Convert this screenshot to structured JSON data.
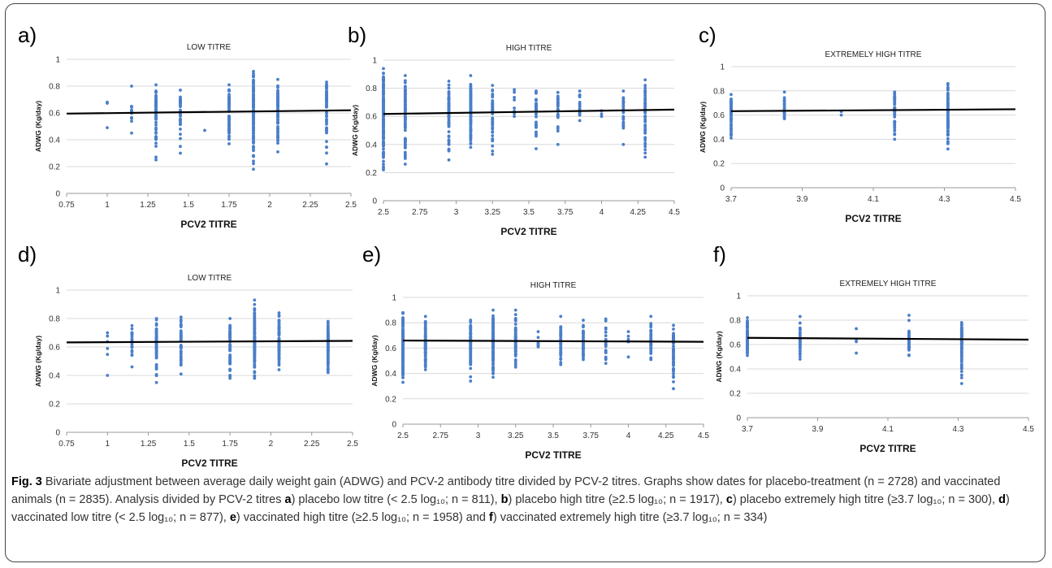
{
  "figure": {
    "caption_label": "Fig. 3",
    "caption_text": " Bivariate adjustment between average daily weight gain (ADWG) and PCV-2 antibody titre divided by PCV-2 titres. Graphs show dates for placebo-treatment (n = 2728) and vaccinated animals (n = 2835). Analysis divided by PCV-2 titres ",
    "caption_parts": [
      {
        "bold": "a",
        "text": ") placebo low titre (< 2.5 log₁₀; n = 811), "
      },
      {
        "bold": "b",
        "text": ") placebo high titre (≥2.5 log₁₀; n = 1917), "
      },
      {
        "bold": "c",
        "text": ") placebo extremely high titre (≥3.7 log₁₀; n = 300), "
      },
      {
        "bold": "d",
        "text": ") vaccinated low titre (< 2.5 log₁₀; n = 877), "
      },
      {
        "bold": "e",
        "text": ") vaccinated high titre (≥2.5 log₁₀; n = 1958) and "
      },
      {
        "bold": "f",
        "text": ") vaccinated extremely high titre (≥3.7 log₁₀; n = 334)"
      }
    ]
  },
  "colors": {
    "points": "#4a7ec9",
    "trend": "#000000",
    "grid": "#d9d9d9"
  },
  "chart_data": [
    {
      "panel": "a)",
      "type": "scatter",
      "title": "LOW TITRE",
      "xlabel": "PCV2 TITRE",
      "ylabel": "ADWG (Kg/day)",
      "xlim": [
        0.75,
        2.5
      ],
      "ylim": [
        0,
        1
      ],
      "xticks": [
        "0.75",
        "1",
        "1.25",
        "1.5",
        "1.75",
        "2",
        "2.25",
        "2.5"
      ],
      "yticks": [
        "0",
        "0.2",
        "0.4",
        "0.6",
        "0.8",
        "1"
      ],
      "trend": [
        [
          0.75,
          0.595
        ],
        [
          2.5,
          0.62
        ]
      ],
      "columns": [
        {
          "x": 1.0,
          "min": 0.49,
          "max": 0.68,
          "n": 3
        },
        {
          "x": 1.15,
          "min": 0.45,
          "max": 0.8,
          "n": 14
        },
        {
          "x": 1.3,
          "min": 0.25,
          "max": 0.81,
          "n": 60
        },
        {
          "x": 1.45,
          "min": 0.3,
          "max": 0.77,
          "n": 40
        },
        {
          "x": 1.6,
          "min": 0.47,
          "max": 0.47,
          "n": 1
        },
        {
          "x": 1.75,
          "min": 0.37,
          "max": 0.81,
          "n": 70
        },
        {
          "x": 1.9,
          "min": 0.18,
          "max": 0.91,
          "n": 120
        },
        {
          "x": 2.05,
          "min": 0.31,
          "max": 0.85,
          "n": 80
        },
        {
          "x": 2.35,
          "min": 0.22,
          "max": 0.83,
          "n": 60
        }
      ]
    },
    {
      "panel": "b)",
      "type": "scatter",
      "title": "HIGH TITRE",
      "xlabel": "PCV2 TITRE",
      "ylabel": "ADWG (Kg/day)",
      "xlim": [
        2.5,
        4.5
      ],
      "ylim": [
        0,
        1
      ],
      "xticks": [
        "2.5",
        "2.75",
        "3",
        "3.25",
        "3.5",
        "3.75",
        "4",
        "4.25",
        "4.5"
      ],
      "yticks": [
        "0",
        "0.2",
        "0.4",
        "0.6",
        "0.8",
        "1"
      ],
      "trend": [
        [
          2.5,
          0.617
        ],
        [
          4.5,
          0.648
        ]
      ],
      "columns": [
        {
          "x": 2.5,
          "min": 0.22,
          "max": 0.94,
          "n": 150
        },
        {
          "x": 2.65,
          "min": 0.26,
          "max": 0.89,
          "n": 100
        },
        {
          "x": 2.95,
          "min": 0.29,
          "max": 0.85,
          "n": 70
        },
        {
          "x": 3.1,
          "min": 0.38,
          "max": 0.89,
          "n": 110
        },
        {
          "x": 3.25,
          "min": 0.33,
          "max": 0.82,
          "n": 60
        },
        {
          "x": 3.4,
          "min": 0.6,
          "max": 0.79,
          "n": 8
        },
        {
          "x": 3.55,
          "min": 0.37,
          "max": 0.78,
          "n": 40
        },
        {
          "x": 3.7,
          "min": 0.4,
          "max": 0.77,
          "n": 40
        },
        {
          "x": 3.85,
          "min": 0.57,
          "max": 0.78,
          "n": 20
        },
        {
          "x": 4.0,
          "min": 0.6,
          "max": 0.64,
          "n": 3
        },
        {
          "x": 4.15,
          "min": 0.4,
          "max": 0.78,
          "n": 30
        },
        {
          "x": 4.3,
          "min": 0.31,
          "max": 0.86,
          "n": 60
        }
      ]
    },
    {
      "panel": "c)",
      "type": "scatter",
      "title": "EXTREMELY HIGH TITRE",
      "xlabel": "PCV2 TITRE",
      "ylabel": "ADWG (Kg/day)",
      "xlim": [
        3.7,
        4.5
      ],
      "ylim": [
        0,
        1
      ],
      "xticks": [
        "3.7",
        "3.9",
        "4.1",
        "4.3",
        "4.5"
      ],
      "yticks": [
        "0",
        "0.2",
        "0.4",
        "0.6",
        "0.8",
        "1"
      ],
      "trend": [
        [
          3.7,
          0.632
        ],
        [
          4.5,
          0.648
        ]
      ],
      "columns": [
        {
          "x": 3.7,
          "min": 0.41,
          "max": 0.77,
          "n": 80
        },
        {
          "x": 3.85,
          "min": 0.57,
          "max": 0.79,
          "n": 30
        },
        {
          "x": 4.01,
          "min": 0.6,
          "max": 0.63,
          "n": 3
        },
        {
          "x": 4.16,
          "min": 0.4,
          "max": 0.79,
          "n": 50
        },
        {
          "x": 4.31,
          "min": 0.32,
          "max": 0.86,
          "n": 90
        }
      ]
    },
    {
      "panel": "d)",
      "type": "scatter",
      "title": "LOW TITRE",
      "xlabel": "PCV2 TITRE",
      "ylabel": "ADWG (Kg/day)",
      "xlim": [
        0.75,
        2.5
      ],
      "ylim": [
        0,
        1
      ],
      "xticks": [
        "0.75",
        "1",
        "1.25",
        "1.5",
        "1.75",
        "2",
        "2.25",
        "2.5"
      ],
      "yticks": [
        "0",
        "0.2",
        "0.4",
        "0.6",
        "0.8",
        "1"
      ],
      "trend": [
        [
          0.75,
          0.632
        ],
        [
          2.5,
          0.643
        ]
      ],
      "columns": [
        {
          "x": 1.0,
          "min": 0.4,
          "max": 0.7,
          "n": 6
        },
        {
          "x": 1.15,
          "min": 0.46,
          "max": 0.75,
          "n": 20
        },
        {
          "x": 1.3,
          "min": 0.35,
          "max": 0.8,
          "n": 70
        },
        {
          "x": 1.45,
          "min": 0.41,
          "max": 0.81,
          "n": 50
        },
        {
          "x": 1.75,
          "min": 0.38,
          "max": 0.8,
          "n": 70
        },
        {
          "x": 1.9,
          "min": 0.38,
          "max": 0.93,
          "n": 130
        },
        {
          "x": 2.05,
          "min": 0.44,
          "max": 0.84,
          "n": 90
        },
        {
          "x": 2.35,
          "min": 0.42,
          "max": 0.78,
          "n": 80
        }
      ]
    },
    {
      "panel": "e)",
      "type": "scatter",
      "title": "HIGH TITRE",
      "xlabel": "PCV2 TITRE",
      "ylabel": "ADWG (Kg/day)",
      "xlim": [
        2.5,
        4.5
      ],
      "ylim": [
        0,
        1
      ],
      "xticks": [
        "2.5",
        "2.75",
        "3",
        "3.25",
        "3.5",
        "3.75",
        "4",
        "4.25",
        "4.5"
      ],
      "yticks": [
        "0",
        "0.2",
        "0.4",
        "0.6",
        "0.8",
        "1"
      ],
      "trend": [
        [
          2.5,
          0.66
        ],
        [
          4.5,
          0.65
        ]
      ],
      "columns": [
        {
          "x": 2.5,
          "min": 0.33,
          "max": 0.88,
          "n": 160
        },
        {
          "x": 2.65,
          "min": 0.43,
          "max": 0.85,
          "n": 100
        },
        {
          "x": 2.95,
          "min": 0.34,
          "max": 0.82,
          "n": 80
        },
        {
          "x": 3.1,
          "min": 0.37,
          "max": 0.9,
          "n": 120
        },
        {
          "x": 3.25,
          "min": 0.45,
          "max": 0.9,
          "n": 70
        },
        {
          "x": 3.4,
          "min": 0.61,
          "max": 0.73,
          "n": 8
        },
        {
          "x": 3.55,
          "min": 0.47,
          "max": 0.85,
          "n": 45
        },
        {
          "x": 3.7,
          "min": 0.51,
          "max": 0.82,
          "n": 45
        },
        {
          "x": 3.85,
          "min": 0.48,
          "max": 0.83,
          "n": 30
        },
        {
          "x": 4.0,
          "min": 0.53,
          "max": 0.73,
          "n": 5
        },
        {
          "x": 4.15,
          "min": 0.51,
          "max": 0.85,
          "n": 40
        },
        {
          "x": 4.3,
          "min": 0.28,
          "max": 0.78,
          "n": 70
        }
      ]
    },
    {
      "panel": "f)",
      "type": "scatter",
      "title": "EXTREMELY HIGH TITRE",
      "xlabel": "PCV2 TITRE",
      "ylabel": "ADWG (Kg/day)",
      "xlim": [
        3.7,
        4.5
      ],
      "ylim": [
        0,
        1
      ],
      "xticks": [
        "3.7",
        "3.9",
        "4.1",
        "4.3",
        "4.5"
      ],
      "yticks": [
        "0",
        "0.2",
        "0.4",
        "0.6",
        "0.8",
        "1"
      ],
      "trend": [
        [
          3.7,
          0.655
        ],
        [
          4.5,
          0.64
        ]
      ],
      "columns": [
        {
          "x": 3.7,
          "min": 0.51,
          "max": 0.82,
          "n": 80
        },
        {
          "x": 3.85,
          "min": 0.48,
          "max": 0.83,
          "n": 35
        },
        {
          "x": 4.01,
          "min": 0.53,
          "max": 0.73,
          "n": 4
        },
        {
          "x": 4.16,
          "min": 0.51,
          "max": 0.84,
          "n": 40
        },
        {
          "x": 4.31,
          "min": 0.28,
          "max": 0.78,
          "n": 90
        }
      ]
    }
  ]
}
